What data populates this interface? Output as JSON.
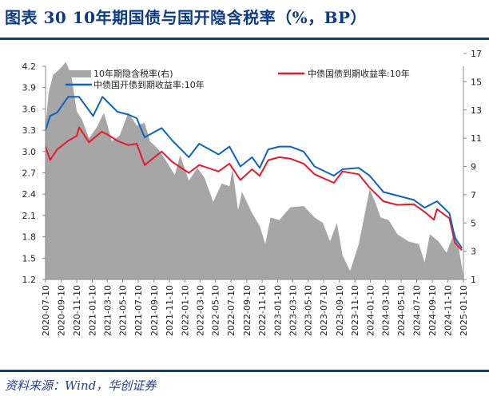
{
  "title": "图表 30   10年期国债与国开隐含税率（%，BP）",
  "source": "资料来源：Wind，华创证券",
  "colors": {
    "title": "#0d3b82",
    "rule": "#0d3f80",
    "area": "#a6a6a6",
    "red": "#e8192c",
    "blue": "#0b63c0"
  },
  "chart_data": {
    "type": "line",
    "title": "",
    "xlabel": "",
    "ylabel": "",
    "xlim": [
      "2020-07-10",
      "2025-01-10"
    ],
    "ylim_left": [
      1.2,
      4.2
    ],
    "ylim_right": [
      1,
      17
    ],
    "grid": false,
    "legend_placement": "top",
    "left_ticks": [
      "4.2",
      "3.9",
      "3.6",
      "3.3",
      "3.0",
      "2.7",
      "2.4",
      "2.1",
      "1.8",
      "1.5",
      "1.2"
    ],
    "right_ticks": [
      "17",
      "15",
      "13",
      "11",
      "9",
      "7",
      "5",
      "3",
      "1"
    ],
    "x_ticks": [
      "2020-07-10",
      "2020-09-10",
      "2020-11-10",
      "2021-01-10",
      "2021-03-10",
      "2021-05-10",
      "2021-07-10",
      "2021-09-10",
      "2021-11-10",
      "2022-01-10",
      "2022-03-10",
      "2022-05-10",
      "2022-07-10",
      "2022-09-10",
      "2022-11-10",
      "2023-01-10",
      "2023-03-10",
      "2023-05-10",
      "2023-07-10",
      "2023-09-10",
      "2023-11-10",
      "2024-01-10",
      "2024-03-10",
      "2024-05-10",
      "2024-07-10",
      "2024-09-10",
      "2024-11-10",
      "2025-01-10"
    ],
    "series": [
      {
        "name": "10年期隐含税率(右)",
        "kind": "area",
        "axis": "right",
        "color": "#a6a6a6",
        "points": [
          [
            "2020-07-10",
            11.9
          ],
          [
            "2020-07-22",
            14.2
          ],
          [
            "2020-08-09",
            15.5
          ],
          [
            "2020-09-04",
            15.9
          ],
          [
            "2020-09-28",
            16.4
          ],
          [
            "2020-10-19",
            15.5
          ],
          [
            "2020-11-10",
            12.9
          ],
          [
            "2020-12-01",
            12.3
          ],
          [
            "2020-12-28",
            11.0
          ],
          [
            "2021-01-25",
            11.7
          ],
          [
            "2021-02-25",
            12.8
          ],
          [
            "2021-03-28",
            10.8
          ],
          [
            "2021-04-28",
            11.2
          ],
          [
            "2021-06-01",
            12.8
          ],
          [
            "2021-07-04",
            11.9
          ],
          [
            "2021-08-04",
            12.1
          ],
          [
            "2021-08-25",
            10.8
          ],
          [
            "2021-09-28",
            10.2
          ],
          [
            "2021-10-31",
            9.3
          ],
          [
            "2021-12-01",
            8.4
          ],
          [
            "2021-12-22",
            9.8
          ],
          [
            "2022-01-25",
            8.0
          ],
          [
            "2022-02-28",
            8.9
          ],
          [
            "2022-03-28",
            8.2
          ],
          [
            "2022-05-01",
            6.5
          ],
          [
            "2022-06-04",
            7.8
          ],
          [
            "2022-07-04",
            7.6
          ],
          [
            "2022-07-16",
            8.8
          ],
          [
            "2022-08-07",
            5.9
          ],
          [
            "2022-08-22",
            7.2
          ],
          [
            "2022-10-01",
            5.7
          ],
          [
            "2022-10-31",
            4.8
          ],
          [
            "2022-11-22",
            3.5
          ],
          [
            "2022-12-13",
            5.4
          ],
          [
            "2023-01-16",
            5.2
          ],
          [
            "2023-02-28",
            6.1
          ],
          [
            "2023-04-22",
            6.2
          ],
          [
            "2023-06-04",
            5.4
          ],
          [
            "2023-07-07",
            5.0
          ],
          [
            "2023-08-04",
            3.7
          ],
          [
            "2023-08-31",
            5.0
          ],
          [
            "2023-09-22",
            2.7
          ],
          [
            "2023-10-22",
            1.6
          ],
          [
            "2023-11-25",
            3.5
          ],
          [
            "2024-01-07",
            7.4
          ],
          [
            "2024-01-28",
            6.5
          ],
          [
            "2024-02-19",
            5.4
          ],
          [
            "2024-03-22",
            5.2
          ],
          [
            "2024-04-25",
            4.2
          ],
          [
            "2024-06-07",
            3.7
          ],
          [
            "2024-07-19",
            3.5
          ],
          [
            "2024-08-10",
            2.2
          ],
          [
            "2024-08-31",
            4.2
          ],
          [
            "2024-10-04",
            3.7
          ],
          [
            "2024-11-04",
            2.9
          ],
          [
            "2024-12-07",
            4.4
          ],
          [
            "2024-12-22",
            3.3
          ],
          [
            "2025-01-10",
            1.2
          ]
        ]
      },
      {
        "name": "中债国债到期收益率:10年",
        "kind": "line",
        "axis": "left",
        "color": "#e8192c",
        "points": [
          [
            "2020-07-10",
            3.07
          ],
          [
            "2020-07-28",
            2.88
          ],
          [
            "2020-08-25",
            3.03
          ],
          [
            "2020-10-07",
            3.15
          ],
          [
            "2020-11-10",
            3.22
          ],
          [
            "2020-11-19",
            3.34
          ],
          [
            "2020-12-28",
            3.13
          ],
          [
            "2021-02-16",
            3.28
          ],
          [
            "2021-03-10",
            3.24
          ],
          [
            "2021-04-19",
            3.15
          ],
          [
            "2021-06-01",
            3.09
          ],
          [
            "2021-07-04",
            3.11
          ],
          [
            "2021-08-04",
            2.81
          ],
          [
            "2021-10-10",
            3.0
          ],
          [
            "2021-11-22",
            2.85
          ],
          [
            "2022-01-25",
            2.7
          ],
          [
            "2022-03-07",
            2.81
          ],
          [
            "2022-05-22",
            2.72
          ],
          [
            "2022-07-04",
            2.83
          ],
          [
            "2022-08-16",
            2.6
          ],
          [
            "2022-10-01",
            2.75
          ],
          [
            "2022-10-31",
            2.66
          ],
          [
            "2022-12-04",
            2.88
          ],
          [
            "2023-01-16",
            2.92
          ],
          [
            "2023-02-28",
            2.9
          ],
          [
            "2023-04-22",
            2.83
          ],
          [
            "2023-06-04",
            2.68
          ],
          [
            "2023-08-19",
            2.56
          ],
          [
            "2023-09-22",
            2.72
          ],
          [
            "2023-11-25",
            2.68
          ],
          [
            "2024-01-07",
            2.49
          ],
          [
            "2024-03-01",
            2.3
          ],
          [
            "2024-04-25",
            2.25
          ],
          [
            "2024-06-28",
            2.26
          ],
          [
            "2024-08-10",
            2.15
          ],
          [
            "2024-09-16",
            2.04
          ],
          [
            "2024-09-28",
            2.19
          ],
          [
            "2024-11-16",
            2.06
          ],
          [
            "2024-12-07",
            1.72
          ],
          [
            "2025-01-04",
            1.61
          ]
        ]
      },
      {
        "name": "中债国开债到期收益率:10年",
        "kind": "line",
        "axis": "left",
        "color": "#0b63c0",
        "points": [
          [
            "2020-07-10",
            3.3
          ],
          [
            "2020-07-28",
            3.5
          ],
          [
            "2020-08-25",
            3.55
          ],
          [
            "2020-10-07",
            3.77
          ],
          [
            "2020-11-19",
            3.77
          ],
          [
            "2021-01-13",
            3.5
          ],
          [
            "2021-02-19",
            3.77
          ],
          [
            "2021-04-19",
            3.56
          ],
          [
            "2021-06-01",
            3.52
          ],
          [
            "2021-07-04",
            3.47
          ],
          [
            "2021-08-04",
            3.2
          ],
          [
            "2021-10-10",
            3.33
          ],
          [
            "2021-11-22",
            3.15
          ],
          [
            "2022-01-25",
            2.92
          ],
          [
            "2022-03-07",
            3.11
          ],
          [
            "2022-05-22",
            2.96
          ],
          [
            "2022-07-04",
            3.07
          ],
          [
            "2022-08-16",
            2.79
          ],
          [
            "2022-10-01",
            2.92
          ],
          [
            "2022-10-31",
            2.77
          ],
          [
            "2022-12-04",
            3.03
          ],
          [
            "2023-01-16",
            3.07
          ],
          [
            "2023-02-28",
            3.07
          ],
          [
            "2023-04-22",
            3.0
          ],
          [
            "2023-06-04",
            2.79
          ],
          [
            "2023-08-19",
            2.66
          ],
          [
            "2023-09-22",
            2.75
          ],
          [
            "2023-11-25",
            2.77
          ],
          [
            "2024-01-07",
            2.66
          ],
          [
            "2024-03-01",
            2.43
          ],
          [
            "2024-04-25",
            2.38
          ],
          [
            "2024-06-28",
            2.32
          ],
          [
            "2024-08-10",
            2.21
          ],
          [
            "2024-09-28",
            2.3
          ],
          [
            "2024-11-16",
            2.13
          ],
          [
            "2024-12-07",
            1.79
          ],
          [
            "2025-01-04",
            1.64
          ]
        ]
      }
    ]
  }
}
